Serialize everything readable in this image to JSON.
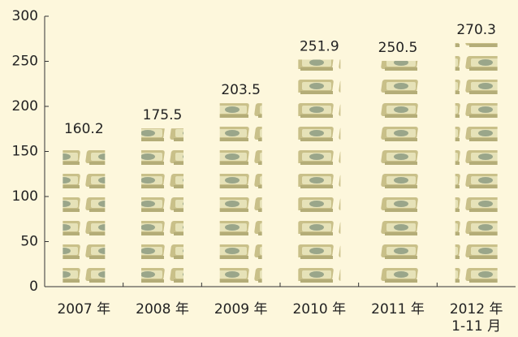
{
  "chart_data": {
    "type": "bar",
    "categories": [
      "2007 年",
      "2008 年",
      "2009 年",
      "2010 年",
      "2011 年",
      "2012 年\n1-11 月"
    ],
    "values": [
      160.2,
      175.5,
      203.5,
      251.9,
      250.5,
      270.3
    ],
    "ylim": [
      0,
      300
    ],
    "yticks": [
      0,
      50,
      100,
      150,
      200,
      250,
      300
    ],
    "grid": false
  }
}
